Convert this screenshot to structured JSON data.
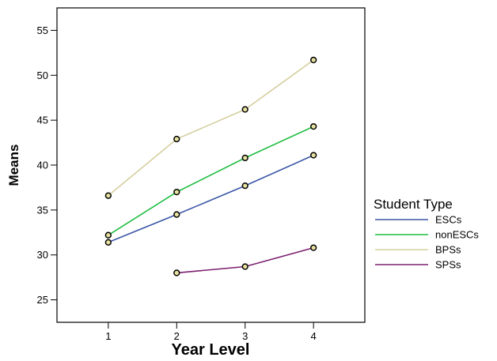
{
  "chart_data": {
    "type": "line",
    "xlabel": "Year Level",
    "ylabel": "Means",
    "x": [
      1,
      2,
      3,
      4
    ],
    "xticks": [
      "1",
      "2",
      "3",
      "4"
    ],
    "xlim": [
      0.25,
      4.75
    ],
    "ylim": [
      22.5,
      57.5
    ],
    "yticks": [
      25,
      30,
      35,
      40,
      45,
      50,
      55
    ],
    "grid": false,
    "legend": {
      "title": "Student Type",
      "position": "right"
    },
    "series": [
      {
        "name": "ESCs",
        "color": "#3a56a5",
        "x": [
          1,
          2,
          3,
          4
        ],
        "values": [
          31.4,
          34.5,
          37.7,
          41.1
        ]
      },
      {
        "name": "nonESCs",
        "color": "#1fbd41",
        "x": [
          1,
          2,
          3,
          4
        ],
        "values": [
          32.2,
          37.0,
          40.8,
          44.3
        ]
      },
      {
        "name": "BPSs",
        "color": "#d4cf9f",
        "x": [
          1,
          2,
          3,
          4
        ],
        "values": [
          36.6,
          42.9,
          46.2,
          51.7
        ]
      },
      {
        "name": "SPSs",
        "color": "#7b1f6e",
        "x": [
          2,
          3,
          4
        ],
        "values": [
          28.0,
          28.7,
          30.8
        ]
      }
    ],
    "marker": {
      "fill": "#e8e3a0",
      "stroke": "#000000"
    }
  }
}
